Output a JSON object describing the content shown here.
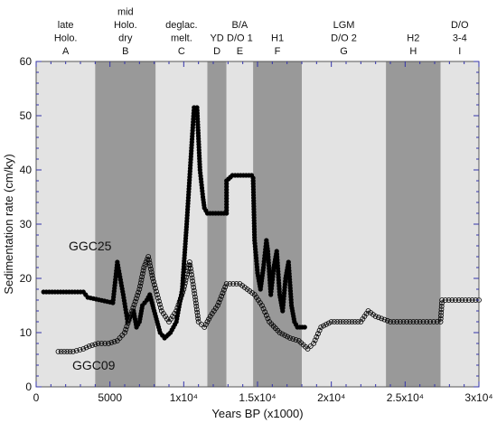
{
  "chart_data": {
    "type": "scatter",
    "xlabel": "Years BP (x1000)",
    "ylabel": "Sedimentation rate (cm/ky)",
    "xlim": [
      0,
      30000
    ],
    "ylim": [
      0,
      60
    ],
    "x_ticks": [
      {
        "value": 0,
        "label": "0"
      },
      {
        "value": 5000,
        "label": "5000"
      },
      {
        "value": 10000,
        "label": "1x10⁴"
      },
      {
        "value": 15000,
        "label": "1.5x10⁴"
      },
      {
        "value": 20000,
        "label": "2x10⁴"
      },
      {
        "value": 25000,
        "label": "2.5x10⁴"
      },
      {
        "value": 30000,
        "label": "3x10⁴"
      }
    ],
    "y_ticks": [
      0,
      10,
      20,
      30,
      40,
      50,
      60
    ],
    "grid": false,
    "zones": [
      {
        "letter": "A",
        "label_lines": [
          "late",
          "Holo."
        ],
        "start": 0,
        "end": 4000,
        "shade": "light"
      },
      {
        "letter": "B",
        "label_lines": [
          "mid",
          "Holo.",
          "dry"
        ],
        "start": 4000,
        "end": 8100,
        "shade": "dark"
      },
      {
        "letter": "C",
        "label_lines": [
          "deglac.",
          "melt."
        ],
        "start": 8100,
        "end": 11600,
        "shade": "light"
      },
      {
        "letter": "D",
        "label_lines": [
          "YD"
        ],
        "start": 11600,
        "end": 12900,
        "shade": "dark"
      },
      {
        "letter": "E",
        "label_lines": [
          "B/A",
          "D/O 1"
        ],
        "start": 12900,
        "end": 14700,
        "shade": "light"
      },
      {
        "letter": "F",
        "label_lines": [
          "H1"
        ],
        "start": 14700,
        "end": 18000,
        "shade": "dark"
      },
      {
        "letter": "G",
        "label_lines": [
          "LGM",
          "D/O 2"
        ],
        "start": 18000,
        "end": 23700,
        "shade": "light"
      },
      {
        "letter": "H",
        "label_lines": [
          "H2"
        ],
        "start": 23700,
        "end": 27400,
        "shade": "dark"
      },
      {
        "letter": "I",
        "label_lines": [
          "D/O",
          "3-4"
        ],
        "start": 27400,
        "end": 30000,
        "shade": "light"
      }
    ],
    "series": [
      {
        "name": "GGC25",
        "marker": "filled-circle",
        "color": "#000000",
        "x": [
          500,
          3200,
          3500,
          5200,
          5500,
          5900,
          6200,
          6600,
          6800,
          7000,
          7200,
          7500,
          7700,
          7900,
          8100,
          8400,
          8700,
          9100,
          9500,
          9900,
          10200,
          10500,
          10700,
          10900,
          11100,
          11300,
          11400,
          11600,
          12900,
          12900,
          13300,
          14600,
          14700,
          14800,
          15000,
          15200,
          15400,
          15600,
          15700,
          15900,
          16100,
          16300,
          16500,
          16700,
          16900,
          17100,
          17300,
          17500,
          17700,
          18200
        ],
        "y": [
          17.5,
          17.5,
          16.5,
          15.5,
          23,
          17,
          12,
          14,
          11,
          12,
          15,
          16,
          17,
          15,
          13,
          10,
          9,
          10,
          12,
          18,
          30,
          43,
          51.5,
          51.5,
          40,
          35,
          33,
          32,
          32,
          38,
          39,
          39,
          38.5,
          27,
          21,
          18,
          22,
          27,
          25,
          17,
          22,
          25,
          17,
          14,
          20,
          23,
          15,
          12,
          11,
          11
        ]
      },
      {
        "name": "GGC09",
        "marker": "open-circle",
        "color": "#000000",
        "x": [
          1500,
          2500,
          3200,
          3600,
          4200,
          4900,
          5500,
          6000,
          6500,
          7000,
          7300,
          7600,
          7900,
          8200,
          8500,
          9000,
          9500,
          10000,
          10400,
          10800,
          11000,
          11400,
          11800,
          12300,
          12900,
          13800,
          14800,
          15300,
          15800,
          16500,
          17200,
          17800,
          18400,
          18800,
          19300,
          20000,
          21000,
          22000,
          22500,
          23000,
          24000,
          26000,
          27400,
          27500,
          30000
        ],
        "y": [
          6.5,
          6.5,
          7,
          7.5,
          8,
          8,
          8.5,
          10,
          14,
          18,
          22,
          24,
          20,
          17,
          14,
          12,
          14,
          18,
          23,
          16,
          12,
          11,
          13,
          15,
          19,
          19,
          17,
          15,
          12,
          10,
          9,
          8.5,
          7,
          8,
          11,
          12,
          12,
          12,
          14,
          13,
          12,
          12,
          12,
          16,
          16
        ]
      }
    ]
  }
}
